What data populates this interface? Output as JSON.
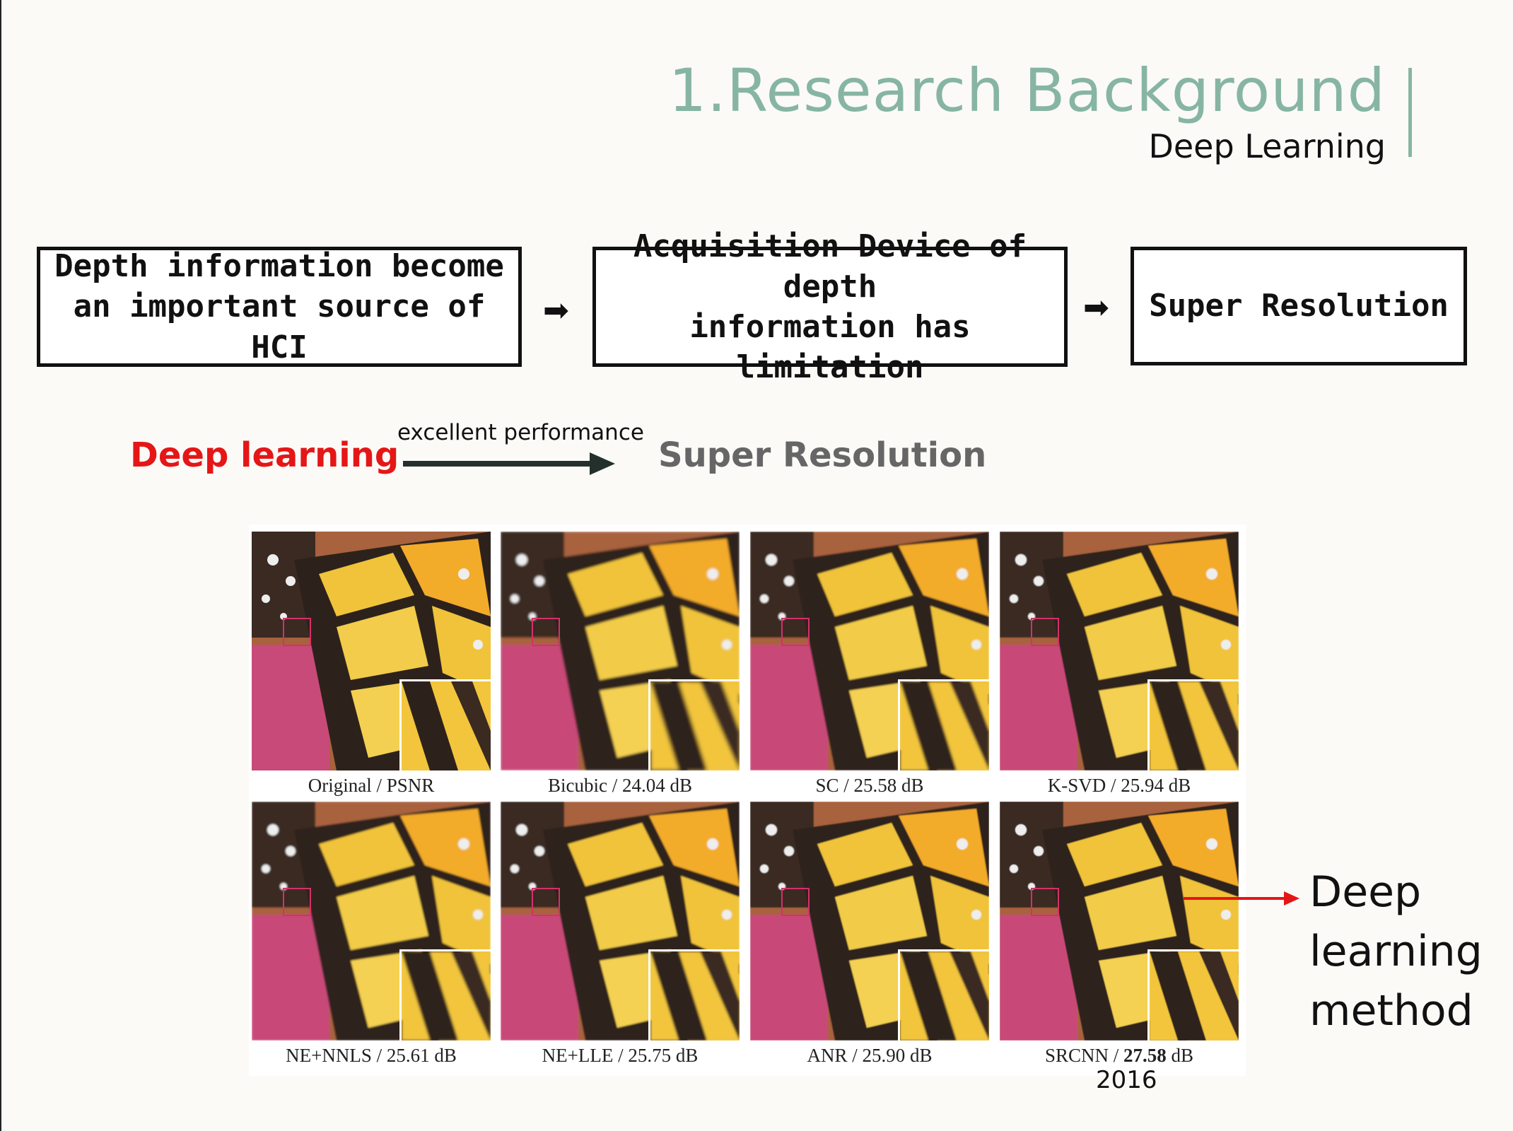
{
  "header": {
    "title": "1.Research Background",
    "subtitle": "Deep Learning"
  },
  "flow": {
    "box1": "Depth information become\nan important source of HCI",
    "box2": "Acquisition Device of depth\ninformation has limitation",
    "box3": "Super Resolution",
    "arrow_glyph": "➡"
  },
  "relation": {
    "left": "Deep learning",
    "arrow_label": "excellent performance",
    "right": "Super Resolution"
  },
  "comparison": {
    "images": [
      {
        "method": "Original",
        "value": "PSNR",
        "bold": false
      },
      {
        "method": "Bicubic",
        "value": "24.04 dB",
        "bold": false
      },
      {
        "method": "SC",
        "value": "25.58 dB",
        "bold": false
      },
      {
        "method": "K-SVD",
        "value": "25.94 dB",
        "bold": false
      },
      {
        "method": "NE+NNLS",
        "value": "25.61 dB",
        "bold": false
      },
      {
        "method": "NE+LLE",
        "value": "25.75 dB",
        "bold": false
      },
      {
        "method": "ANR",
        "value": "25.90 dB",
        "bold": false
      },
      {
        "method": "SRCNN",
        "value": "27.58",
        "unit": "dB",
        "bold": true
      }
    ],
    "year": "2016"
  },
  "annotation": {
    "line1": "Deep",
    "line2": "learning",
    "line3": "method",
    "color": "#e51616"
  }
}
